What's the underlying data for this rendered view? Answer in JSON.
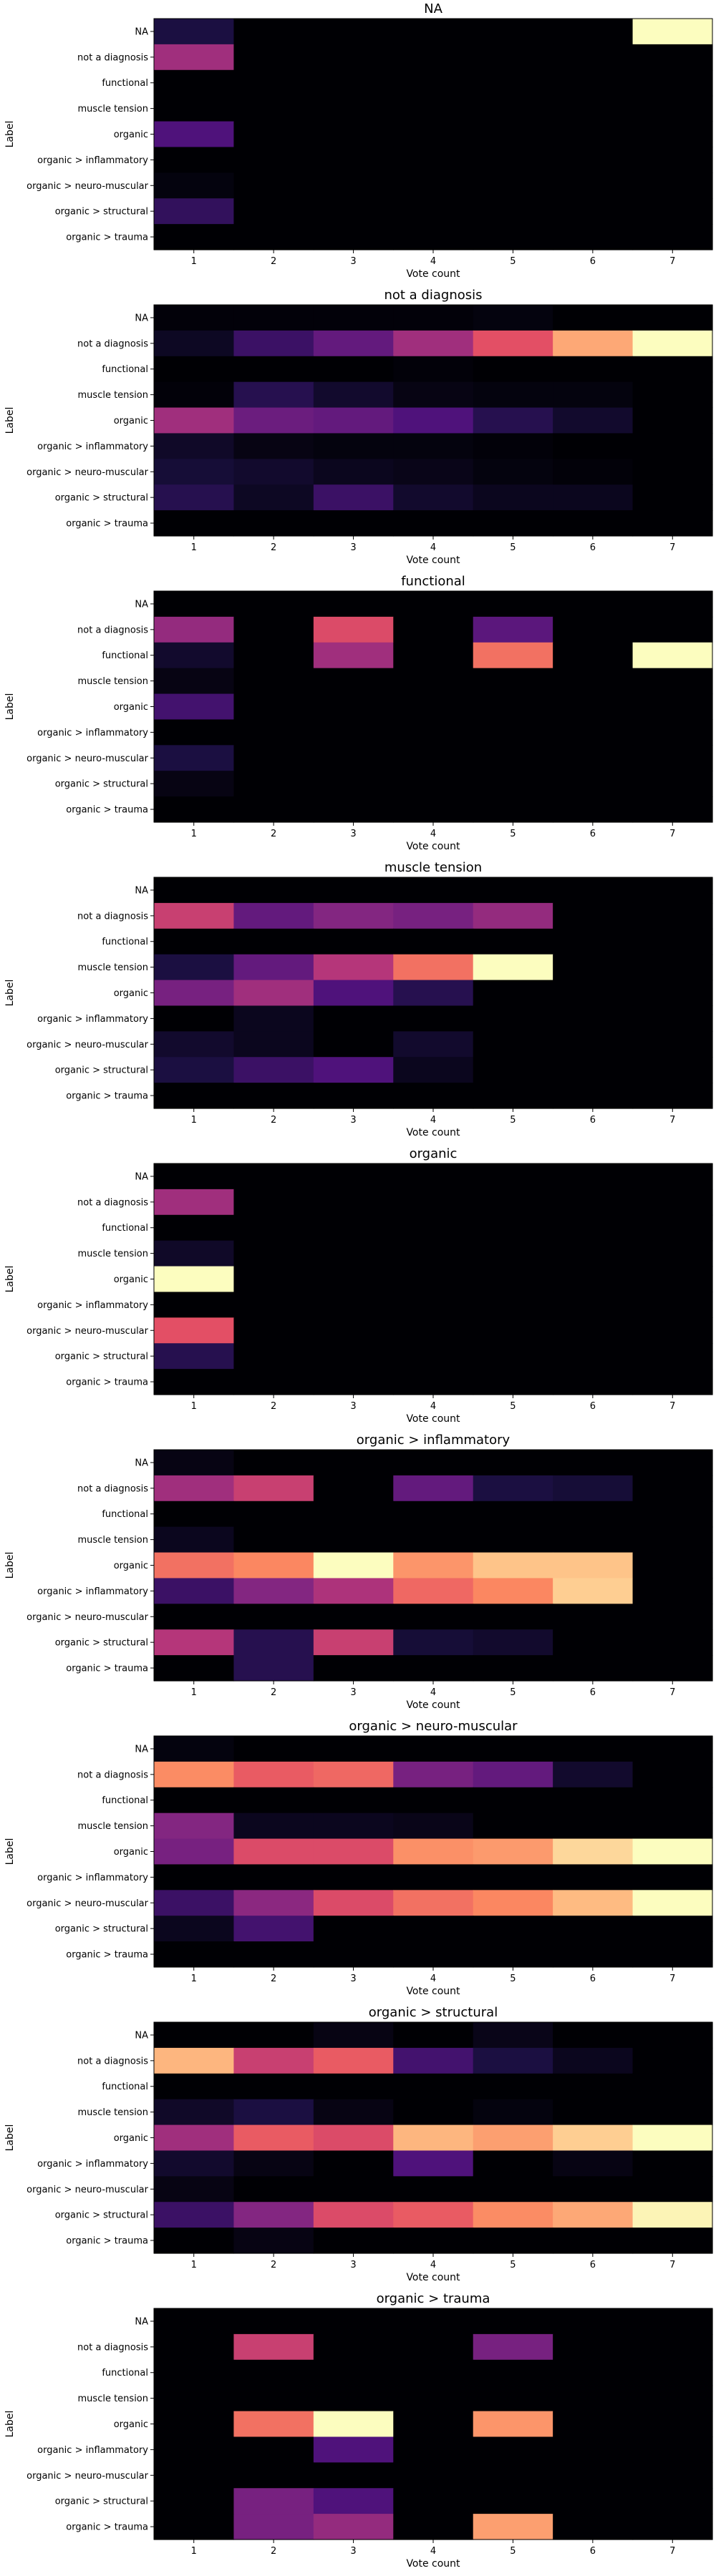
{
  "colormap": "magma",
  "colormap_stops": [
    "#000004",
    "#1c1044",
    "#4f127b",
    "#812581",
    "#b5367a",
    "#e55064",
    "#fb8761",
    "#fec287",
    "#fcfdbf"
  ],
  "chart_data": [
    {
      "type": "heatmap",
      "title": "NA",
      "xlabel": "Vote count",
      "ylabel": "Label",
      "x": [
        "1",
        "2",
        "3",
        "4",
        "5",
        "6",
        "7"
      ],
      "y": [
        "NA",
        "not a diagnosis",
        "functional",
        "muscle tension",
        "organic",
        "organic > inflammatory",
        "organic > neuro-muscular",
        "organic > structural",
        "organic > trauma"
      ],
      "z": [
        [
          0.12,
          0,
          0,
          0,
          0,
          0,
          1.0
        ],
        [
          0.45,
          0,
          0,
          0,
          0,
          0,
          0
        ],
        [
          0,
          0,
          0,
          0,
          0,
          0,
          0
        ],
        [
          0,
          0,
          0,
          0,
          0,
          0,
          0
        ],
        [
          0.25,
          0,
          0,
          0,
          0,
          0,
          0
        ],
        [
          0,
          0,
          0,
          0,
          0,
          0,
          0
        ],
        [
          0.02,
          0,
          0,
          0,
          0,
          0,
          0
        ],
        [
          0.18,
          0,
          0,
          0,
          0,
          0,
          0
        ],
        [
          0,
          0,
          0,
          0,
          0,
          0,
          0
        ]
      ]
    },
    {
      "type": "heatmap",
      "title": "not a diagnosis",
      "xlabel": "Vote count",
      "ylabel": "Label",
      "x": [
        "1",
        "2",
        "3",
        "4",
        "5",
        "6",
        "7"
      ],
      "y": [
        "NA",
        "not a diagnosis",
        "functional",
        "muscle tension",
        "organic",
        "organic > inflammatory",
        "organic > neuro-muscular",
        "organic > structural",
        "organic > trauma"
      ],
      "z": [
        [
          0.01,
          0.01,
          0.01,
          0.01,
          0.02,
          0,
          0
        ],
        [
          0.06,
          0.2,
          0.3,
          0.45,
          0.62,
          0.82,
          1.0
        ],
        [
          0,
          0,
          0,
          0.01,
          0,
          0,
          0
        ],
        [
          0.01,
          0.15,
          0.08,
          0.03,
          0.02,
          0.02,
          0
        ],
        [
          0.45,
          0.32,
          0.3,
          0.25,
          0.15,
          0.08,
          0
        ],
        [
          0.07,
          0.03,
          0.02,
          0.02,
          0.01,
          0,
          0
        ],
        [
          0.1,
          0.08,
          0.05,
          0.04,
          0.02,
          0.01,
          0
        ],
        [
          0.15,
          0.06,
          0.2,
          0.08,
          0.05,
          0.05,
          0
        ],
        [
          0,
          0,
          0,
          0,
          0,
          0,
          0
        ]
      ]
    },
    {
      "type": "heatmap",
      "title": "functional",
      "xlabel": "Vote count",
      "ylabel": "Label",
      "x": [
        "1",
        "2",
        "3",
        "4",
        "5",
        "6",
        "7"
      ],
      "y": [
        "NA",
        "not a diagnosis",
        "functional",
        "muscle tension",
        "organic",
        "organic > inflammatory",
        "organic > neuro-muscular",
        "organic > structural",
        "organic > trauma"
      ],
      "z": [
        [
          0,
          0,
          0,
          0,
          0,
          0,
          0
        ],
        [
          0.42,
          0,
          0.6,
          0,
          0.28,
          0,
          0
        ],
        [
          0.08,
          0,
          0.45,
          0,
          0.7,
          0,
          1.0
        ],
        [
          0.03,
          0,
          0,
          0,
          0,
          0,
          0
        ],
        [
          0.22,
          0,
          0,
          0,
          0,
          0,
          0
        ],
        [
          0,
          0,
          0,
          0,
          0,
          0,
          0
        ],
        [
          0.12,
          0,
          0,
          0,
          0,
          0,
          0
        ],
        [
          0.03,
          0,
          0,
          0,
          0,
          0,
          0
        ],
        [
          0,
          0,
          0,
          0,
          0,
          0,
          0
        ]
      ]
    },
    {
      "type": "heatmap",
      "title": "muscle tension",
      "xlabel": "Vote count",
      "ylabel": "Label",
      "x": [
        "1",
        "2",
        "3",
        "4",
        "5",
        "6",
        "7"
      ],
      "y": [
        "NA",
        "not a diagnosis",
        "functional",
        "muscle tension",
        "organic",
        "organic > inflammatory",
        "organic > neuro-muscular",
        "organic > structural",
        "organic > trauma"
      ],
      "z": [
        [
          0,
          0,
          0,
          0,
          0,
          0,
          0
        ],
        [
          0.55,
          0.3,
          0.38,
          0.35,
          0.42,
          0,
          0
        ],
        [
          0,
          0,
          0,
          0,
          0,
          0,
          0
        ],
        [
          0.12,
          0.3,
          0.5,
          0.7,
          1.0,
          0,
          0
        ],
        [
          0.35,
          0.45,
          0.25,
          0.15,
          0,
          0,
          0
        ],
        [
          0,
          0.05,
          0,
          0,
          0,
          0,
          0
        ],
        [
          0.08,
          0.05,
          0,
          0.08,
          0,
          0,
          0
        ],
        [
          0.12,
          0.2,
          0.25,
          0.05,
          0,
          0,
          0
        ],
        [
          0,
          0,
          0,
          0,
          0,
          0,
          0
        ]
      ]
    },
    {
      "type": "heatmap",
      "title": "organic",
      "xlabel": "Vote count",
      "ylabel": "Label",
      "x": [
        "1",
        "2",
        "3",
        "4",
        "5",
        "6",
        "7"
      ],
      "y": [
        "NA",
        "not a diagnosis",
        "functional",
        "muscle tension",
        "organic",
        "organic > inflammatory",
        "organic > neuro-muscular",
        "organic > structural",
        "organic > trauma"
      ],
      "z": [
        [
          0,
          0,
          0,
          0,
          0,
          0,
          0
        ],
        [
          0.45,
          0,
          0,
          0,
          0,
          0,
          0
        ],
        [
          0,
          0,
          0,
          0,
          0,
          0,
          0
        ],
        [
          0.07,
          0,
          0,
          0,
          0,
          0,
          0
        ],
        [
          1.0,
          0,
          0,
          0,
          0,
          0,
          0
        ],
        [
          0,
          0,
          0,
          0,
          0,
          0,
          0
        ],
        [
          0.62,
          0,
          0,
          0,
          0,
          0,
          0
        ],
        [
          0.15,
          0,
          0,
          0,
          0,
          0,
          0
        ],
        [
          0,
          0,
          0,
          0,
          0,
          0,
          0
        ]
      ]
    },
    {
      "type": "heatmap",
      "title": "organic > inflammatory",
      "xlabel": "Vote count",
      "ylabel": "Label",
      "x": [
        "1",
        "2",
        "3",
        "4",
        "5",
        "6",
        "7"
      ],
      "y": [
        "NA",
        "not a diagnosis",
        "functional",
        "muscle tension",
        "organic",
        "organic > inflammatory",
        "organic > neuro-muscular",
        "organic > structural",
        "organic > trauma"
      ],
      "z": [
        [
          0.03,
          0,
          0,
          0,
          0,
          0,
          0
        ],
        [
          0.45,
          0.55,
          0,
          0.3,
          0.12,
          0.1,
          0
        ],
        [
          0,
          0,
          0,
          0,
          0,
          0,
          0
        ],
        [
          0.05,
          0,
          0,
          0,
          0,
          0,
          0
        ],
        [
          0.7,
          0.75,
          1.0,
          0.78,
          0.88,
          0.88,
          0
        ],
        [
          0.2,
          0.38,
          0.48,
          0.68,
          0.75,
          0.9,
          0
        ],
        [
          0,
          0,
          0,
          0,
          0,
          0,
          0
        ],
        [
          0.5,
          0.15,
          0.55,
          0.1,
          0.08,
          0,
          0
        ],
        [
          0,
          0.15,
          0,
          0,
          0,
          0,
          0
        ]
      ]
    },
    {
      "type": "heatmap",
      "title": "organic > neuro-muscular",
      "xlabel": "Vote count",
      "ylabel": "Label",
      "x": [
        "1",
        "2",
        "3",
        "4",
        "5",
        "6",
        "7"
      ],
      "y": [
        "NA",
        "not a diagnosis",
        "functional",
        "muscle tension",
        "organic",
        "organic > inflammatory",
        "organic > neuro-muscular",
        "organic > structural",
        "organic > trauma"
      ],
      "z": [
        [
          0.02,
          0,
          0,
          0,
          0,
          0,
          0
        ],
        [
          0.76,
          0.65,
          0.68,
          0.35,
          0.3,
          0.08,
          0
        ],
        [
          0,
          0,
          0,
          0,
          0,
          0,
          0
        ],
        [
          0.38,
          0.05,
          0.05,
          0.04,
          0,
          0,
          0
        ],
        [
          0.35,
          0.6,
          0.6,
          0.77,
          0.79,
          0.92,
          1.0
        ],
        [
          0,
          0,
          0,
          0,
          0,
          0,
          0
        ],
        [
          0.2,
          0.4,
          0.6,
          0.7,
          0.75,
          0.86,
          1.0
        ],
        [
          0.05,
          0.22,
          0,
          0,
          0,
          0,
          0
        ],
        [
          0,
          0,
          0,
          0,
          0,
          0,
          0
        ]
      ]
    },
    {
      "type": "heatmap",
      "title": "organic > structural",
      "xlabel": "Vote count",
      "ylabel": "Label",
      "x": [
        "1",
        "2",
        "3",
        "4",
        "5",
        "6",
        "7"
      ],
      "y": [
        "NA",
        "not a diagnosis",
        "functional",
        "muscle tension",
        "organic",
        "organic > inflammatory",
        "organic > neuro-muscular",
        "organic > structural",
        "organic > trauma"
      ],
      "z": [
        [
          0,
          0,
          0.03,
          0,
          0.04,
          0,
          0
        ],
        [
          0.85,
          0.55,
          0.65,
          0.22,
          0.12,
          0.05,
          0
        ],
        [
          0,
          0,
          0,
          0,
          0,
          0,
          0
        ],
        [
          0.07,
          0.12,
          0.03,
          0,
          0.02,
          0,
          0
        ],
        [
          0.45,
          0.65,
          0.6,
          0.85,
          0.8,
          0.9,
          1.0
        ],
        [
          0.08,
          0.03,
          0,
          0.25,
          0,
          0.03,
          0
        ],
        [
          0.03,
          0,
          0,
          0,
          0,
          0,
          0
        ],
        [
          0.2,
          0.38,
          0.6,
          0.65,
          0.76,
          0.82,
          0.98
        ],
        [
          0,
          0.03,
          0,
          0,
          0,
          0,
          0
        ]
      ]
    },
    {
      "type": "heatmap",
      "title": "organic > trauma",
      "xlabel": "Vote count",
      "ylabel": "Label",
      "x": [
        "1",
        "2",
        "3",
        "4",
        "5",
        "6",
        "7"
      ],
      "y": [
        "NA",
        "not a diagnosis",
        "functional",
        "muscle tension",
        "organic",
        "organic > inflammatory",
        "organic > neuro-muscular",
        "organic > structural",
        "organic > trauma"
      ],
      "z": [
        [
          0,
          0,
          0,
          0,
          0,
          0,
          0
        ],
        [
          0,
          0.55,
          0,
          0,
          0.35,
          0,
          0
        ],
        [
          0,
          0,
          0,
          0,
          0,
          0,
          0
        ],
        [
          0,
          0,
          0,
          0,
          0,
          0,
          0
        ],
        [
          0,
          0.7,
          1.0,
          0,
          0.78,
          0,
          0
        ],
        [
          0,
          0,
          0.25,
          0,
          0,
          0,
          0
        ],
        [
          0,
          0,
          0,
          0,
          0,
          0,
          0
        ],
        [
          0,
          0.35,
          0.25,
          0,
          0,
          0,
          0
        ],
        [
          0,
          0.35,
          0.42,
          0,
          0.8,
          0,
          0
        ]
      ]
    }
  ]
}
